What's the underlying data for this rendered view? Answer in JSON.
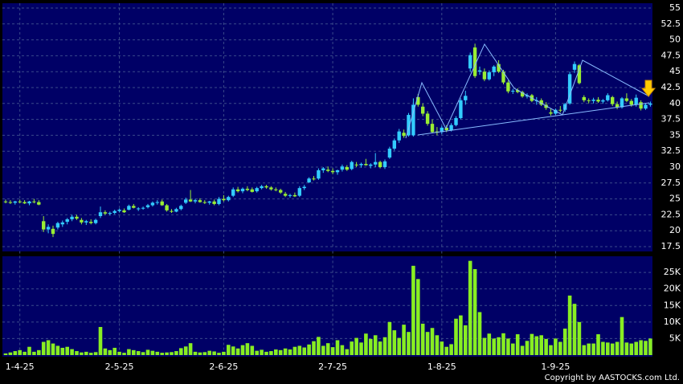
{
  "chart_data": [
    {
      "type": "candlestick",
      "up_color": "#33ccff",
      "down_color": "#99ee33",
      "ylim": [
        17.5,
        55
      ],
      "yticks": [
        17.5,
        20,
        22.5,
        25,
        27.5,
        30,
        32.5,
        35,
        37.5,
        40,
        42.5,
        45,
        47.5,
        50,
        52.5,
        55
      ],
      "grid": true,
      "ohlc": [
        [
          24.6,
          24.9,
          24.3,
          24.5
        ],
        [
          24.5,
          24.8,
          24.2,
          24.4
        ],
        [
          24.4,
          24.7,
          24.1,
          24.6
        ],
        [
          24.6,
          24.9,
          24.3,
          24.5
        ],
        [
          24.5,
          24.8,
          24.2,
          24.3
        ],
        [
          24.3,
          24.7,
          24.0,
          24.6
        ],
        [
          24.6,
          25.0,
          24.3,
          24.5
        ],
        [
          24.5,
          24.8,
          24.0,
          24.1
        ],
        [
          21.5,
          22.3,
          19.8,
          20.2
        ],
        [
          20.2,
          21.0,
          19.6,
          20.6
        ],
        [
          20.3,
          20.8,
          19.0,
          19.5
        ],
        [
          20.5,
          21.4,
          20.2,
          21.2
        ],
        [
          21.0,
          21.6,
          20.6,
          21.3
        ],
        [
          21.4,
          22.0,
          21.0,
          21.8
        ],
        [
          21.8,
          22.5,
          21.5,
          22.2
        ],
        [
          22.2,
          22.5,
          21.7,
          21.9
        ],
        [
          21.7,
          22.0,
          21.0,
          21.3
        ],
        [
          21.3,
          21.7,
          20.9,
          21.5
        ],
        [
          21.4,
          21.8,
          21.0,
          21.2
        ],
        [
          21.2,
          21.9,
          21.0,
          21.7
        ],
        [
          22.3,
          23.8,
          22.0,
          22.9
        ],
        [
          22.9,
          23.2,
          22.5,
          22.7
        ],
        [
          22.7,
          23.0,
          22.4,
          22.8
        ],
        [
          22.8,
          23.3,
          22.6,
          23.1
        ],
        [
          23.1,
          23.5,
          22.9,
          23.3
        ],
        [
          23.2,
          23.5,
          22.8,
          22.9
        ],
        [
          23.3,
          24.1,
          23.2,
          23.9
        ],
        [
          23.9,
          24.2,
          23.5,
          23.6
        ],
        [
          23.4,
          23.7,
          23.1,
          23.5
        ],
        [
          23.5,
          23.8,
          23.3,
          23.6
        ],
        [
          23.7,
          24.2,
          23.5,
          24.0
        ],
        [
          24.0,
          24.6,
          23.8,
          24.4
        ],
        [
          24.4,
          24.8,
          24.1,
          24.5
        ],
        [
          24.6,
          24.9,
          23.9,
          24.0
        ],
        [
          24.0,
          24.2,
          23.0,
          23.2
        ],
        [
          23.1,
          23.4,
          22.8,
          23.0
        ],
        [
          23.0,
          23.6,
          22.9,
          23.4
        ],
        [
          23.4,
          24.1,
          23.2,
          23.9
        ],
        [
          24.4,
          25.2,
          24.2,
          24.9
        ],
        [
          24.9,
          26.4,
          24.5,
          24.6
        ],
        [
          24.6,
          25.0,
          24.3,
          24.8
        ],
        [
          24.8,
          25.1,
          24.4,
          24.5
        ],
        [
          24.5,
          24.8,
          24.2,
          24.4
        ],
        [
          24.4,
          24.7,
          24.1,
          24.6
        ],
        [
          24.6,
          24.9,
          24.0,
          24.2
        ],
        [
          24.2,
          25.3,
          24.0,
          25.0
        ],
        [
          25.0,
          25.6,
          24.6,
          24.8
        ],
        [
          24.8,
          25.5,
          24.6,
          25.3
        ],
        [
          25.5,
          26.8,
          25.3,
          26.5
        ],
        [
          26.5,
          26.9,
          26.0,
          26.2
        ],
        [
          26.2,
          26.8,
          25.9,
          26.6
        ],
        [
          26.6,
          27.0,
          26.2,
          26.4
        ],
        [
          26.5,
          26.8,
          26.0,
          26.1
        ],
        [
          26.2,
          26.9,
          26.0,
          26.7
        ],
        [
          26.7,
          27.2,
          26.5,
          27.0
        ],
        [
          27.0,
          27.2,
          26.6,
          26.8
        ],
        [
          26.8,
          27.0,
          26.3,
          26.5
        ],
        [
          26.5,
          26.8,
          26.2,
          26.4
        ],
        [
          26.4,
          26.6,
          25.8,
          26.0
        ],
        [
          25.8,
          26.1,
          25.3,
          25.5
        ],
        [
          25.5,
          25.8,
          25.2,
          25.6
        ],
        [
          25.6,
          26.0,
          25.3,
          25.4
        ],
        [
          25.5,
          27.0,
          25.3,
          26.7
        ],
        [
          26.7,
          27.2,
          26.4,
          26.9
        ],
        [
          27.6,
          28.4,
          27.5,
          28.2
        ],
        [
          28.2,
          28.6,
          27.9,
          28.1
        ],
        [
          28.2,
          29.8,
          28.0,
          29.5
        ],
        [
          29.5,
          30.0,
          29.1,
          29.8
        ],
        [
          29.6,
          30.1,
          29.2,
          29.4
        ],
        [
          29.4,
          29.8,
          28.9,
          29.2
        ],
        [
          29.2,
          29.6,
          28.8,
          29.5
        ],
        [
          29.6,
          30.4,
          29.3,
          30.1
        ],
        [
          30.0,
          30.3,
          29.4,
          29.6
        ],
        [
          29.7,
          31.0,
          29.5,
          30.8
        ],
        [
          30.4,
          30.8,
          30.0,
          30.3
        ],
        [
          30.3,
          30.7,
          29.9,
          30.5
        ],
        [
          30.5,
          31.3,
          30.2,
          30.3
        ],
        [
          30.2,
          30.6,
          29.8,
          30.4
        ],
        [
          30.4,
          32.2,
          30.0,
          30.8
        ],
        [
          30.8,
          31.0,
          29.8,
          30.0
        ],
        [
          30.0,
          31.2,
          29.7,
          30.9
        ],
        [
          31.5,
          33.2,
          31.3,
          32.9
        ],
        [
          32.9,
          34.5,
          32.6,
          34.2
        ],
        [
          34.2,
          36.0,
          33.8,
          35.6
        ],
        [
          35.4,
          35.9,
          34.6,
          34.9
        ],
        [
          35.0,
          38.5,
          34.8,
          38.2
        ],
        [
          35.0,
          40.8,
          34.8,
          39.8
        ],
        [
          41.0,
          41.5,
          39.5,
          39.8
        ],
        [
          39.5,
          40.0,
          38.0,
          38.4
        ],
        [
          38.4,
          38.8,
          36.5,
          36.8
        ],
        [
          36.8,
          37.5,
          35.3,
          35.5
        ],
        [
          35.6,
          36.3,
          35.0,
          35.4
        ],
        [
          35.5,
          36.5,
          35.2,
          36.2
        ],
        [
          36.2,
          36.6,
          35.5,
          35.8
        ],
        [
          35.8,
          36.9,
          35.6,
          36.6
        ],
        [
          36.6,
          38.0,
          36.4,
          37.7
        ],
        [
          37.7,
          40.8,
          37.5,
          40.5
        ],
        [
          40.5,
          42.0,
          39.8,
          41.2
        ],
        [
          45.5,
          48.0,
          45.0,
          47.6
        ],
        [
          48.8,
          49.4,
          44.0,
          44.3
        ],
        [
          45.0,
          45.8,
          44.5,
          45.2
        ],
        [
          45.0,
          45.5,
          43.5,
          43.8
        ],
        [
          43.8,
          45.2,
          43.6,
          44.9
        ],
        [
          44.9,
          46.0,
          44.3,
          45.8
        ],
        [
          46.2,
          46.8,
          44.8,
          45.0
        ],
        [
          45.0,
          45.3,
          43.0,
          43.3
        ],
        [
          43.3,
          43.6,
          41.6,
          41.9
        ],
        [
          41.9,
          42.3,
          41.5,
          42.0
        ],
        [
          42.1,
          42.4,
          41.6,
          41.8
        ],
        [
          41.8,
          42.0,
          40.9,
          41.1
        ],
        [
          41.1,
          41.6,
          40.8,
          41.3
        ],
        [
          41.3,
          41.5,
          40.2,
          40.4
        ],
        [
          40.4,
          41.0,
          39.8,
          40.5
        ],
        [
          40.5,
          40.8,
          39.6,
          39.8
        ],
        [
          39.8,
          40.2,
          39.0,
          39.3
        ],
        [
          38.6,
          39.2,
          38.1,
          38.4
        ],
        [
          38.4,
          39.2,
          38.2,
          39.0
        ],
        [
          39.0,
          39.6,
          38.6,
          38.9
        ],
        [
          39.0,
          40.1,
          38.7,
          39.9
        ],
        [
          40.0,
          45.0,
          39.8,
          44.6
        ],
        [
          45.3,
          46.6,
          44.8,
          46.2
        ],
        [
          46.0,
          46.2,
          43.0,
          43.2
        ],
        [
          41.0,
          41.3,
          40.2,
          40.5
        ],
        [
          40.5,
          40.8,
          40.0,
          40.4
        ],
        [
          40.4,
          40.9,
          40.0,
          40.6
        ],
        [
          40.6,
          41.0,
          40.1,
          40.3
        ],
        [
          40.3,
          40.7,
          40.0,
          40.5
        ],
        [
          40.5,
          41.6,
          40.3,
          41.3
        ],
        [
          41.0,
          41.2,
          39.6,
          39.9
        ],
        [
          39.9,
          40.3,
          39.1,
          39.4
        ],
        [
          39.4,
          41.0,
          39.2,
          40.8
        ],
        [
          40.8,
          41.6,
          40.2,
          40.4
        ],
        [
          40.4,
          40.7,
          39.5,
          39.8
        ],
        [
          39.8,
          41.4,
          39.5,
          40.9
        ],
        [
          40.2,
          40.5,
          38.9,
          39.2
        ],
        [
          39.2,
          40.0,
          39.0,
          39.8
        ],
        [
          39.8,
          40.3,
          39.5,
          40.0
        ]
      ]
    },
    {
      "type": "bar",
      "color": "#88ee22",
      "ylim": [
        0,
        30000
      ],
      "grid": true,
      "yticks": [
        {
          "value": 5000,
          "label": "5K"
        },
        {
          "value": 10000,
          "label": "10K"
        },
        {
          "value": 15000,
          "label": "15K"
        },
        {
          "value": 20000,
          "label": "20K"
        },
        {
          "value": 25000,
          "label": "25K"
        }
      ],
      "categories": [
        null,
        null,
        null,
        "1-4-25",
        null,
        null,
        null,
        null,
        null,
        null,
        null,
        null,
        null,
        null,
        null,
        null,
        null,
        null,
        null,
        null,
        null,
        null,
        null,
        null,
        "2-5-25",
        null,
        null,
        null,
        null,
        null,
        null,
        null,
        null,
        null,
        null,
        null,
        null,
        null,
        null,
        null,
        null,
        null,
        null,
        null,
        null,
        null,
        "2-6-25",
        null,
        null,
        null,
        null,
        null,
        null,
        null,
        null,
        null,
        null,
        null,
        null,
        null,
        null,
        null,
        null,
        null,
        null,
        null,
        null,
        null,
        null,
        "2-7-25",
        null,
        null,
        null,
        null,
        null,
        null,
        null,
        null,
        null,
        null,
        null,
        null,
        null,
        null,
        null,
        null,
        null,
        null,
        null,
        null,
        null,
        null,
        "1-8-25",
        null,
        null,
        null,
        null,
        null,
        null,
        null,
        null,
        null,
        null,
        null,
        null,
        null,
        null,
        null,
        null,
        null,
        null,
        null,
        null,
        null,
        null,
        null,
        "1-9-25",
        null,
        null,
        null,
        null,
        null,
        null,
        null,
        null,
        null,
        null,
        null,
        null,
        null,
        null,
        null,
        null,
        null,
        null,
        null,
        null
      ],
      "values": [
        500,
        800,
        1200,
        1500,
        1000,
        2500,
        1000,
        1500,
        4000,
        4500,
        3500,
        2800,
        2200,
        2500,
        1800,
        1200,
        800,
        1000,
        700,
        900,
        8500,
        2000,
        1500,
        2200,
        1000,
        700,
        1800,
        1500,
        1200,
        900,
        1600,
        1300,
        1000,
        700,
        800,
        900,
        1200,
        2100,
        2600,
        3600,
        1000,
        800,
        900,
        1300,
        1100,
        700,
        1000,
        3100,
        2600,
        2000,
        3000,
        3600,
        2800,
        1300,
        1600,
        1000,
        1200,
        1700,
        1500,
        2000,
        1700,
        2500,
        2800,
        2300,
        3200,
        4200,
        5500,
        2800,
        3600,
        2400,
        4500,
        3000,
        1800,
        4100,
        5200,
        3800,
        6500,
        4900,
        6000,
        4100,
        5400,
        10000,
        7500,
        5200,
        9200,
        7000,
        27000,
        23000,
        9500,
        7000,
        8200,
        6000,
        4100,
        2500,
        3300,
        11000,
        12000,
        9000,
        28500,
        26000,
        13000,
        5200,
        6500,
        5000,
        5400,
        6600,
        5000,
        3500,
        6300,
        2800,
        4300,
        6400,
        5700,
        6000,
        4900,
        3000,
        5000,
        4000,
        8000,
        18000,
        15500,
        10000,
        3000,
        3500,
        3500,
        6300,
        4000,
        3800,
        3500,
        4000,
        11500,
        3800,
        3500,
        4000,
        4500,
        4300,
        5000
      ]
    }
  ],
  "copyright": "Copyright by AASTOCKS.com Ltd."
}
